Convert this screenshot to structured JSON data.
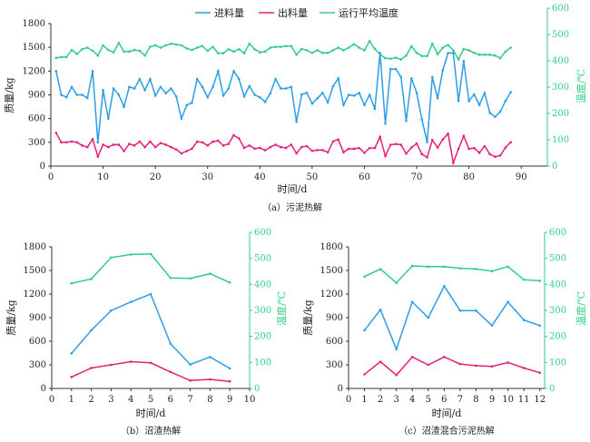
{
  "colors": {
    "feed": "#2a9fe6",
    "output": "#e4207a",
    "temp": "#30cc88",
    "axis": "#333333"
  },
  "legend": {
    "feed": "进料量",
    "output": "出料量",
    "temp": "运行平均温度"
  },
  "chart_data": [
    {
      "type": "line",
      "title": "（a）污泥热解",
      "xlabel": "时间/d",
      "ylabel": "质量/kg",
      "y2label": "温度/℃",
      "xlim": [
        0,
        95
      ],
      "xticks": [
        0,
        10,
        20,
        30,
        40,
        50,
        60,
        70,
        80,
        90
      ],
      "ylim": [
        0,
        1800
      ],
      "yticks": [
        0,
        300,
        600,
        900,
        1200,
        1500,
        1800
      ],
      "y2lim": [
        0,
        600
      ],
      "y2ticks": [
        0,
        100,
        200,
        300,
        400,
        500,
        600
      ],
      "x": [
        1,
        2,
        3,
        4,
        5,
        6,
        7,
        8,
        9,
        10,
        11,
        12,
        13,
        14,
        15,
        16,
        17,
        18,
        19,
        20,
        21,
        22,
        23,
        24,
        25,
        26,
        27,
        28,
        29,
        30,
        31,
        32,
        33,
        34,
        35,
        36,
        37,
        38,
        39,
        40,
        41,
        42,
        43,
        44,
        45,
        46,
        47,
        48,
        49,
        50,
        51,
        52,
        53,
        54,
        55,
        56,
        57,
        58,
        59,
        60,
        61,
        62,
        63,
        64,
        65,
        66,
        67,
        68,
        69,
        70,
        71,
        72,
        73,
        74,
        75,
        76,
        77,
        78,
        79,
        80,
        81,
        82,
        83,
        84,
        85,
        86,
        87,
        88
      ],
      "series": [
        {
          "name": "进料量",
          "axis": "left",
          "values": [
            1200,
            900,
            870,
            1000,
            900,
            900,
            860,
            1200,
            300,
            960,
            600,
            980,
            900,
            750,
            1000,
            980,
            1100,
            960,
            1100,
            890,
            1000,
            920,
            980,
            880,
            600,
            770,
            800,
            1100,
            1000,
            870,
            1000,
            1200,
            890,
            980,
            1200,
            1100,
            880,
            1010,
            900,
            870,
            810,
            920,
            1100,
            980,
            980,
            1000,
            560,
            907,
            924,
            790,
            857,
            924,
            806,
            1008,
            1109,
            773,
            900,
            890,
            924,
            773,
            900,
            722,
            1428,
            538,
            1226,
            1226,
            1126,
            571,
            1109,
            924,
            588,
            302,
            1126,
            857,
            1210,
            1428,
            1428,
            823,
            1327,
            823,
            907,
            773,
            924,
            672,
            622,
            689,
            823,
            934
          ]
        },
        {
          "name": "出料量",
          "axis": "left",
          "values": [
            420,
            300,
            300,
            310,
            300,
            260,
            240,
            340,
            120,
            270,
            240,
            270,
            270,
            190,
            280,
            260,
            310,
            240,
            310,
            240,
            290,
            270,
            240,
            210,
            160,
            190,
            220,
            310,
            300,
            260,
            310,
            320,
            260,
            280,
            390,
            350,
            230,
            260,
            220,
            230,
            200,
            240,
            270,
            240,
            230,
            270,
            160,
            242,
            252,
            192,
            202,
            202,
            175,
            312,
            336,
            175,
            218,
            218,
            228,
            168,
            228,
            228,
            370,
            128,
            269,
            279,
            269,
            158,
            235,
            286,
            151,
            111,
            329,
            235,
            336,
            410,
            40,
            218,
            380,
            218,
            228,
            168,
            252,
            151,
            118,
            134,
            235,
            302
          ]
        },
        {
          "name": "运行平均温度",
          "axis": "right",
          "values": [
            411,
            414,
            414,
            441,
            426,
            444,
            450,
            438,
            420,
            459,
            441,
            432,
            468,
            435,
            435,
            441,
            438,
            420,
            453,
            459,
            450,
            459,
            465,
            462,
            459,
            447,
            441,
            450,
            456,
            438,
            453,
            429,
            429,
            444,
            435,
            444,
            429,
            465,
            444,
            432,
            435,
            450,
            453,
            453,
            456,
            456,
            423,
            445,
            440,
            430,
            440,
            430,
            430,
            440,
            450,
            440,
            450,
            463,
            450,
            440,
            475,
            445,
            425,
            410,
            408,
            412,
            405,
            420,
            455,
            430,
            418,
            418,
            465,
            425,
            450,
            460,
            440,
            405,
            445,
            440,
            430,
            423,
            423,
            423,
            420,
            410,
            435,
            450
          ]
        }
      ]
    },
    {
      "type": "line",
      "title": "（b）沼渣热解",
      "xlabel": "时间/d",
      "ylabel": "质量/kg",
      "y2label": "温度/℃",
      "xlim": [
        0,
        10
      ],
      "xticks": [
        0,
        1,
        2,
        3,
        4,
        5,
        6,
        7,
        8,
        9,
        10
      ],
      "ylim": [
        0,
        1800
      ],
      "yticks": [
        0,
        300,
        600,
        900,
        1200,
        1500,
        1800
      ],
      "y2lim": [
        0,
        600
      ],
      "y2ticks": [
        0,
        100,
        200,
        300,
        400,
        500,
        600
      ],
      "x": [
        1,
        2,
        3,
        4,
        5,
        6,
        7,
        8,
        9
      ],
      "series": [
        {
          "name": "进料量",
          "axis": "left",
          "values": [
            445,
            740,
            990,
            1100,
            1200,
            570,
            305,
            400,
            255
          ]
        },
        {
          "name": "出料量",
          "axis": "left",
          "values": [
            145,
            260,
            300,
            340,
            325,
            210,
            100,
            115,
            90
          ]
        },
        {
          "name": "运行平均温度",
          "axis": "right",
          "values": [
            404,
            421,
            503,
            515,
            517,
            425,
            423,
            441,
            407
          ]
        }
      ]
    },
    {
      "type": "line",
      "title": "（c）沼渣混合污泥热解",
      "xlabel": "时间/d",
      "ylabel": "质量/kg",
      "y2label": "温度/℃",
      "xlim": [
        0,
        12.3
      ],
      "xticks": [
        0,
        1,
        2,
        3,
        4,
        5,
        6,
        7,
        8,
        9,
        10,
        11,
        12
      ],
      "ylim": [
        0,
        1800
      ],
      "yticks": [
        0,
        300,
        600,
        900,
        1200,
        1500,
        1800
      ],
      "y2lim": [
        0,
        600
      ],
      "y2ticks": [
        0,
        100,
        200,
        300,
        400,
        500,
        600
      ],
      "x": [
        1,
        2,
        3,
        4,
        5,
        6,
        7,
        8,
        9,
        10,
        11,
        12
      ],
      "series": [
        {
          "name": "进料量",
          "axis": "left",
          "values": [
            740,
            1000,
            500,
            1100,
            900,
            1300,
            990,
            990,
            800,
            1100,
            870,
            800
          ]
        },
        {
          "name": "出料量",
          "axis": "left",
          "values": [
            180,
            340,
            170,
            400,
            300,
            400,
            310,
            290,
            280,
            330,
            260,
            200
          ]
        },
        {
          "name": "运行平均温度",
          "axis": "right",
          "values": [
            430,
            459,
            406,
            471,
            468,
            468,
            462,
            459,
            451,
            468,
            418,
            414
          ]
        }
      ]
    }
  ]
}
